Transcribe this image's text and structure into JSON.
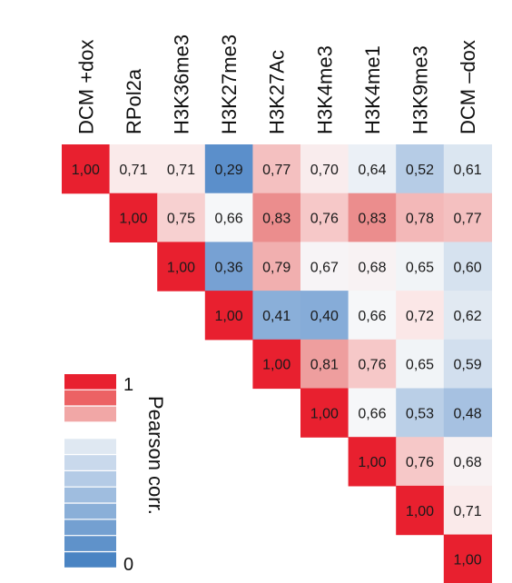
{
  "chart_data": {
    "type": "heatmap",
    "matrix_shape": "upper-triangular",
    "labels": [
      "DCM +dox",
      "RPol2a",
      "H3K36me3",
      "H3K27me3",
      "H3K27Ac",
      "H3K4me3",
      "H3K4me1",
      "H3K9me3",
      "DCM –dox"
    ],
    "values": [
      [
        1.0,
        0.71,
        0.71,
        0.29,
        0.77,
        0.7,
        0.64,
        0.52,
        0.61
      ],
      [
        null,
        1.0,
        0.75,
        0.66,
        0.83,
        0.76,
        0.83,
        0.78,
        0.77
      ],
      [
        null,
        null,
        1.0,
        0.36,
        0.79,
        0.67,
        0.68,
        0.65,
        0.6
      ],
      [
        null,
        null,
        null,
        1.0,
        0.41,
        0.4,
        0.66,
        0.72,
        0.62
      ],
      [
        null,
        null,
        null,
        null,
        1.0,
        0.81,
        0.76,
        0.65,
        0.59
      ],
      [
        null,
        null,
        null,
        null,
        null,
        1.0,
        0.66,
        0.53,
        0.48
      ],
      [
        null,
        null,
        null,
        null,
        null,
        null,
        1.0,
        0.76,
        0.68
      ],
      [
        null,
        null,
        null,
        null,
        null,
        null,
        null,
        1.0,
        0.71
      ],
      [
        null,
        null,
        null,
        null,
        null,
        null,
        null,
        null,
        1.0
      ]
    ],
    "value_labels": [
      [
        "1,00",
        "0,71",
        "0,71",
        "0,29",
        "0,77",
        "0,70",
        "0,64",
        "0,52",
        "0,61"
      ],
      [
        null,
        "1,00",
        "0,75",
        "0,66",
        "0,83",
        "0,76",
        "0,83",
        "0,78",
        "0,77"
      ],
      [
        null,
        null,
        "1,00",
        "0,36",
        "0,79",
        "0,67",
        "0,68",
        "0,65",
        "0,60"
      ],
      [
        null,
        null,
        null,
        "1,00",
        "0,41",
        "0,40",
        "0,66",
        "0,72",
        "0,62"
      ],
      [
        null,
        null,
        null,
        null,
        "1,00",
        "0,81",
        "0,76",
        "0,65",
        "0,59"
      ],
      [
        null,
        null,
        null,
        null,
        null,
        "1,00",
        "0,66",
        "0,53",
        "0,48"
      ],
      [
        null,
        null,
        null,
        null,
        null,
        null,
        "1,00",
        "0,76",
        "0,68"
      ],
      [
        null,
        null,
        null,
        null,
        null,
        null,
        null,
        "1,00",
        "0,71"
      ],
      [
        null,
        null,
        null,
        null,
        null,
        null,
        null,
        null,
        "1,00"
      ]
    ],
    "color_scale": {
      "title": "Pearson corr.",
      "min_label": "0",
      "max_label": "1",
      "diagonal_color": "#e8202f",
      "steps": [
        "#e8202f",
        "#ec6264",
        "#f1a7a6",
        "#ffffff",
        "#dfe8f2",
        "#c9d9ec",
        "#b4cbe6",
        "#9fbddf",
        "#8aafd8",
        "#74a0d1",
        "#5f92ca",
        "#4a84c3"
      ]
    }
  }
}
